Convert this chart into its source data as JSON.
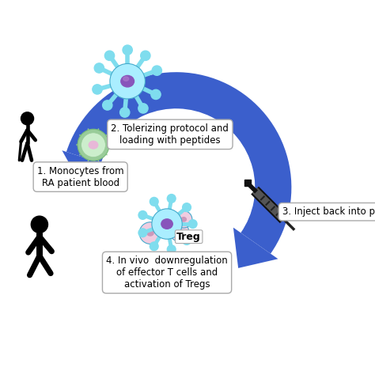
{
  "bg_color": "#ffffff",
  "arrow_color": "#3B5FCC",
  "arrow_color2": "#4F80E0",
  "cell_cyan": "#7fddee",
  "cell_cyan_light": "#aaeeff",
  "cell_cyan_dark": "#44aacc",
  "cell_nucleus_purple": "#8855bb",
  "cell_nucleus_light": "#aa77cc",
  "cell_body_pink": "#e8b8d8",
  "cell_body_pink2": "#f0cce0",
  "cell_green_outer": "#99cc99",
  "cell_green_inner": "#cceecc",
  "cell_pink_body": "#e8c8dc",
  "label1": "1. Monocytes from\nRA patient blood",
  "label2": "2. Tolerizing protocol and\nloading with peptides",
  "label3": "3. Inject back into p",
  "label4": "4. In vivo  downregulation\nof effector T cells and\nactivation of Tregs",
  "treg_label": "Treg",
  "figure_bg": "#ffffff"
}
